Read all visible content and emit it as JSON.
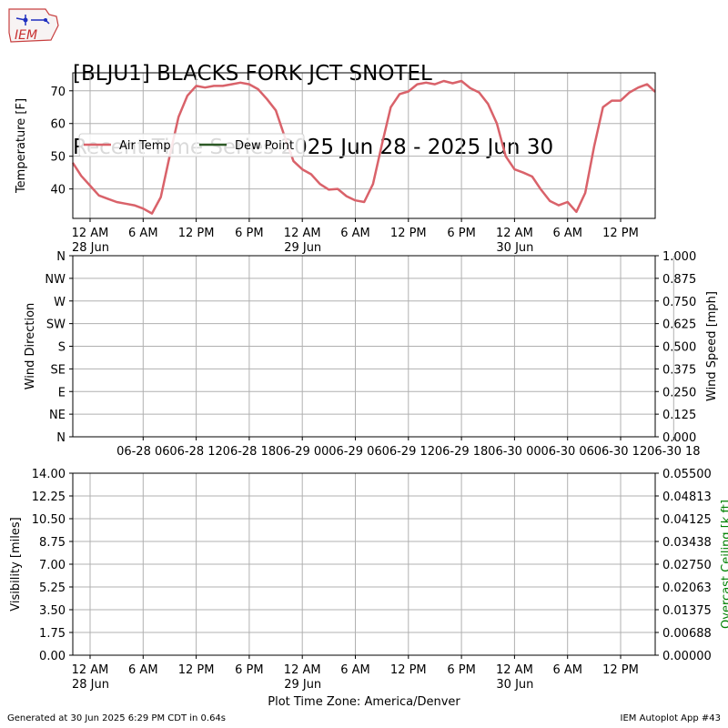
{
  "header": {
    "logo_text": "IEM",
    "title_line1": "[BLJU1] BLACKS FORK JCT SNOTEL",
    "title_line2": "Recent Time Series 2025 Jun 28 - 2025 Jun 30"
  },
  "footer": {
    "generated": "Generated at 30 Jun 2025 6:29 PM CDT in 0.64s",
    "app": "IEM Autoplot App #43",
    "timezone": "Plot Time Zone: America/Denver"
  },
  "colors": {
    "air_temp": "#d9626a",
    "dew_point": "#2d5a27",
    "ceiling_label": "#008000",
    "grid": "#b0b0b0"
  },
  "chart_data": [
    {
      "type": "line",
      "ylabel": "Temperature [F]",
      "ylim": [
        31,
        75.5
      ],
      "yticks": [
        40,
        50,
        60,
        70
      ],
      "xlim": [
        -2,
        64
      ],
      "xticks": [
        {
          "x": 0,
          "label": "12 AM",
          "sub": "28 Jun"
        },
        {
          "x": 6,
          "label": "6 AM",
          "sub": ""
        },
        {
          "x": 12,
          "label": "12 PM",
          "sub": ""
        },
        {
          "x": 18,
          "label": "6 PM",
          "sub": ""
        },
        {
          "x": 24,
          "label": "12 AM",
          "sub": "29 Jun"
        },
        {
          "x": 30,
          "label": "6 AM",
          "sub": ""
        },
        {
          "x": 36,
          "label": "12 PM",
          "sub": ""
        },
        {
          "x": 42,
          "label": "6 PM",
          "sub": ""
        },
        {
          "x": 48,
          "label": "12 AM",
          "sub": "30 Jun"
        },
        {
          "x": 54,
          "label": "6 AM",
          "sub": ""
        },
        {
          "x": 60,
          "label": "12 PM",
          "sub": ""
        }
      ],
      "legend": {
        "placement": "center-left",
        "entries": [
          "Air Temp",
          "Dew Point"
        ]
      },
      "grid": true,
      "series": [
        {
          "name": "Air Temp",
          "x": [
            -2,
            -1,
            0,
            1,
            2,
            3,
            4,
            5,
            6,
            7,
            8,
            9,
            10,
            11,
            12,
            13,
            14,
            15,
            16,
            17,
            18,
            19,
            20,
            21,
            22,
            23,
            24,
            25,
            26,
            27,
            28,
            29,
            30,
            31,
            32,
            33,
            34,
            35,
            36,
            37,
            38,
            39,
            40,
            41,
            42,
            43,
            44,
            45,
            46,
            47,
            48,
            49,
            50,
            51,
            52,
            53,
            54,
            55,
            56,
            57,
            58,
            59,
            60,
            61,
            62,
            63,
            64
          ],
          "y": [
            48,
            44,
            41,
            38,
            37,
            36,
            35.5,
            35,
            34,
            32.5,
            37.5,
            50,
            62,
            68.5,
            71.5,
            71,
            71.5,
            71.5,
            72,
            72.5,
            72,
            70.5,
            67.5,
            64,
            56,
            48.5,
            46,
            44.5,
            41.5,
            39.8,
            40,
            37.8,
            36.5,
            36,
            41.5,
            53.5,
            65,
            69,
            69.8,
            72,
            72.5,
            72,
            73,
            72.3,
            73,
            70.8,
            69.5,
            66,
            60,
            50,
            46,
            45,
            43.8,
            39.8,
            36.3,
            35,
            36,
            33,
            38.8,
            53,
            65,
            67,
            67,
            69.5,
            71,
            72,
            69.7
          ]
        },
        {
          "name": "Dew Point",
          "x": [],
          "y": []
        }
      ]
    },
    {
      "type": "line",
      "ylabel": "Wind Direction",
      "ylabel_right": "Wind Speed [mph]",
      "yticks": [
        "N",
        "NE",
        "E",
        "SE",
        "S",
        "SW",
        "W",
        "NW",
        "N"
      ],
      "yticks_right": [
        "0.000",
        "0.125",
        "0.250",
        "0.375",
        "0.500",
        "0.625",
        "0.750",
        "0.875",
        "1.000"
      ],
      "xticks": [
        "06-28 06",
        "06-28 12",
        "06-28 18",
        "06-29 00",
        "06-29 06",
        "06-29 12",
        "06-29 18",
        "06-30 00",
        "06-30 06",
        "06-30 12",
        "06-30 18"
      ],
      "grid": true,
      "series": []
    },
    {
      "type": "line",
      "ylabel": "Visibility [miles]",
      "ylabel_right": "Overcast Ceiling [k ft]",
      "yticks": [
        "0.00",
        "1.75",
        "3.50",
        "5.25",
        "7.00",
        "8.75",
        "10.50",
        "12.25",
        "14.00"
      ],
      "yticks_right": [
        "0.00000",
        "0.00688",
        "0.01375",
        "0.02063",
        "0.02750",
        "0.03438",
        "0.04125",
        "0.04813",
        "0.05500"
      ],
      "xticks": [
        {
          "label": "12 AM",
          "sub": "28 Jun"
        },
        {
          "label": "6 AM",
          "sub": ""
        },
        {
          "label": "12 PM",
          "sub": ""
        },
        {
          "label": "6 PM",
          "sub": ""
        },
        {
          "label": "12 AM",
          "sub": "29 Jun"
        },
        {
          "label": "6 AM",
          "sub": ""
        },
        {
          "label": "12 PM",
          "sub": ""
        },
        {
          "label": "6 PM",
          "sub": ""
        },
        {
          "label": "12 AM",
          "sub": "30 Jun"
        },
        {
          "label": "6 AM",
          "sub": ""
        },
        {
          "label": "12 PM",
          "sub": ""
        }
      ],
      "grid": true,
      "series": []
    }
  ]
}
